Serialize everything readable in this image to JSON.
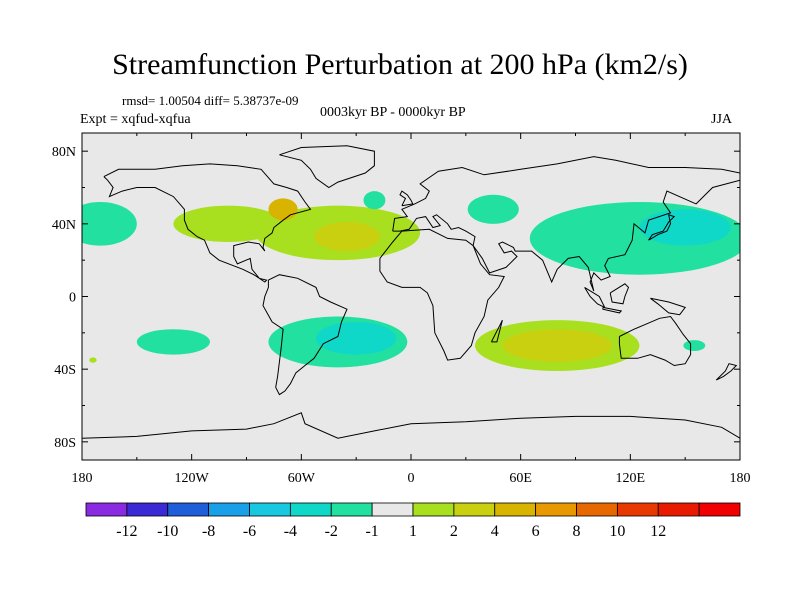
{
  "title": "Streamfunction Perturbation at 200 hPa (km2/s)",
  "stats": "rmsd= 1.00504 diff= 5.38737e-09",
  "experiment": "Expt = xqfud-xqfua",
  "period": "0003kyr BP - 0000kyr BP",
  "season": "JJA",
  "map": {
    "projection": "cylindrical equidistant",
    "lon_range": [
      -180,
      180
    ],
    "lat_range": [
      -90,
      90
    ],
    "lon_ticks": [
      {
        "value": -180,
        "label": "180"
      },
      {
        "value": -120,
        "label": "120W"
      },
      {
        "value": -60,
        "label": "60W"
      },
      {
        "value": 0,
        "label": "0"
      },
      {
        "value": 60,
        "label": "60E"
      },
      {
        "value": 120,
        "label": "120E"
      },
      {
        "value": 180,
        "label": "180"
      }
    ],
    "lat_ticks": [
      {
        "value": 80,
        "label": "80N"
      },
      {
        "value": 40,
        "label": "40N"
      },
      {
        "value": 0,
        "label": "0"
      },
      {
        "value": -40,
        "label": "40S"
      },
      {
        "value": -80,
        "label": "80S"
      }
    ],
    "background_color": "#e8e8e8",
    "coastline_color": "#000000"
  },
  "colorbar": {
    "colors": [
      "#8a2be2",
      "#3a2ad6",
      "#1e5ed8",
      "#1aa0e8",
      "#18c8e0",
      "#10d8c8",
      "#22e0a0",
      "#e8e8e8",
      "#a8e020",
      "#c8d010",
      "#d8b400",
      "#e89800",
      "#e86800",
      "#e83a00",
      "#e81a00",
      "#f00000"
    ],
    "labels": [
      "-12",
      "-10",
      "-8",
      "-6",
      "-4",
      "-2",
      "-1",
      "1",
      "2",
      "4",
      "6",
      "8",
      "10",
      "12"
    ]
  },
  "anomaly_regions": [
    {
      "lon": -170,
      "lat": 40,
      "rx": 20,
      "ry": 12,
      "color": "#22e0a0"
    },
    {
      "lon": -100,
      "lat": 40,
      "rx": 30,
      "ry": 10,
      "color": "#a8e020"
    },
    {
      "lon": -40,
      "lat": 35,
      "rx": 45,
      "ry": 15,
      "color": "#a8e020"
    },
    {
      "lon": -35,
      "lat": 33,
      "rx": 18,
      "ry": 8,
      "color": "#c8d010"
    },
    {
      "lon": -70,
      "lat": 48,
      "rx": 8,
      "ry": 6,
      "color": "#d8b400"
    },
    {
      "lon": -20,
      "lat": 53,
      "rx": 6,
      "ry": 5,
      "color": "#22e0a0"
    },
    {
      "lon": 45,
      "lat": 48,
      "rx": 14,
      "ry": 8,
      "color": "#22e0a0"
    },
    {
      "lon": 125,
      "lat": 32,
      "rx": 60,
      "ry": 20,
      "color": "#22e0a0"
    },
    {
      "lon": 150,
      "lat": 38,
      "rx": 25,
      "ry": 10,
      "color": "#10d8c8"
    },
    {
      "lon": -130,
      "lat": -25,
      "rx": 20,
      "ry": 7,
      "color": "#22e0a0"
    },
    {
      "lon": -40,
      "lat": -25,
      "rx": 38,
      "ry": 14,
      "color": "#22e0a0"
    },
    {
      "lon": -30,
      "lat": -23,
      "rx": 22,
      "ry": 9,
      "color": "#10d8c8"
    },
    {
      "lon": 80,
      "lat": -27,
      "rx": 45,
      "ry": 14,
      "color": "#a8e020"
    },
    {
      "lon": 80,
      "lat": -27,
      "rx": 30,
      "ry": 9,
      "color": "#c8d010"
    },
    {
      "lon": 155,
      "lat": -27,
      "rx": 6,
      "ry": 3,
      "color": "#22e0a0"
    },
    {
      "lon": -174,
      "lat": -35,
      "rx": 2,
      "ry": 1.5,
      "color": "#a8e020"
    }
  ]
}
